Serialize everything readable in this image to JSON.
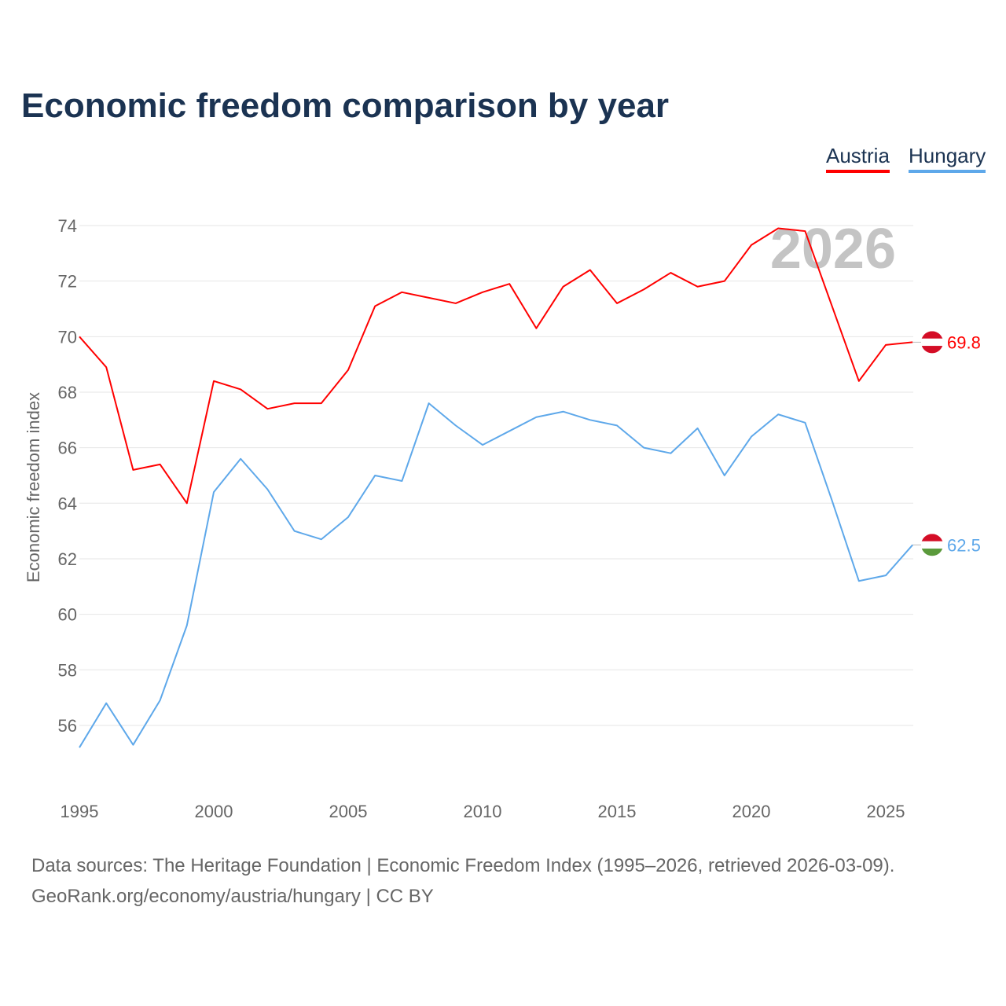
{
  "chart_data": {
    "type": "line",
    "title": "Economic freedom comparison by year",
    "xlabel": "",
    "ylabel": "Economic freedom index",
    "x": [
      1995,
      1996,
      1997,
      1998,
      1999,
      2000,
      2001,
      2002,
      2003,
      2004,
      2005,
      2006,
      2007,
      2008,
      2009,
      2010,
      2011,
      2012,
      2013,
      2014,
      2015,
      2016,
      2017,
      2018,
      2019,
      2020,
      2021,
      2022,
      2023,
      2024,
      2025,
      2026
    ],
    "series": [
      {
        "name": "Austria",
        "color": "#ff0000",
        "end_label": "69.8",
        "values": [
          70.0,
          68.9,
          65.2,
          65.4,
          64.0,
          68.4,
          68.1,
          67.4,
          67.6,
          67.6,
          68.8,
          71.1,
          71.6,
          71.4,
          71.2,
          71.6,
          71.9,
          70.3,
          71.8,
          72.4,
          71.2,
          71.7,
          72.3,
          71.8,
          72.0,
          73.3,
          73.9,
          73.8,
          71.1,
          68.4,
          69.7,
          69.8
        ]
      },
      {
        "name": "Hungary",
        "color": "#5ea8ea",
        "end_label": "62.5",
        "values": [
          55.2,
          56.8,
          55.3,
          56.9,
          59.6,
          64.4,
          65.6,
          64.5,
          63.0,
          62.7,
          63.5,
          65.0,
          64.8,
          67.6,
          66.8,
          66.1,
          66.6,
          67.1,
          67.3,
          67.0,
          66.8,
          66.0,
          65.8,
          66.7,
          65.0,
          66.4,
          67.2,
          66.9,
          64.1,
          61.2,
          61.4,
          62.5
        ]
      }
    ],
    "yticks": [
      "56",
      "58",
      "60",
      "62",
      "64",
      "66",
      "68",
      "70",
      "72",
      "74"
    ],
    "xticks": [
      "1995",
      "2000",
      "2005",
      "2010",
      "2015",
      "2020",
      "2025"
    ],
    "ylim": [
      54,
      75
    ],
    "xlim": [
      1995,
      2026
    ],
    "grid": true,
    "legend_position": "top-right",
    "year_watermark": "2026"
  },
  "footer": {
    "line1": "Data sources: The Heritage Foundation | Economic Freedom Index (1995–2026, retrieved 2026-03-09).",
    "line2": "GeoRank.org/economy/austria/hungary | CC BY"
  }
}
